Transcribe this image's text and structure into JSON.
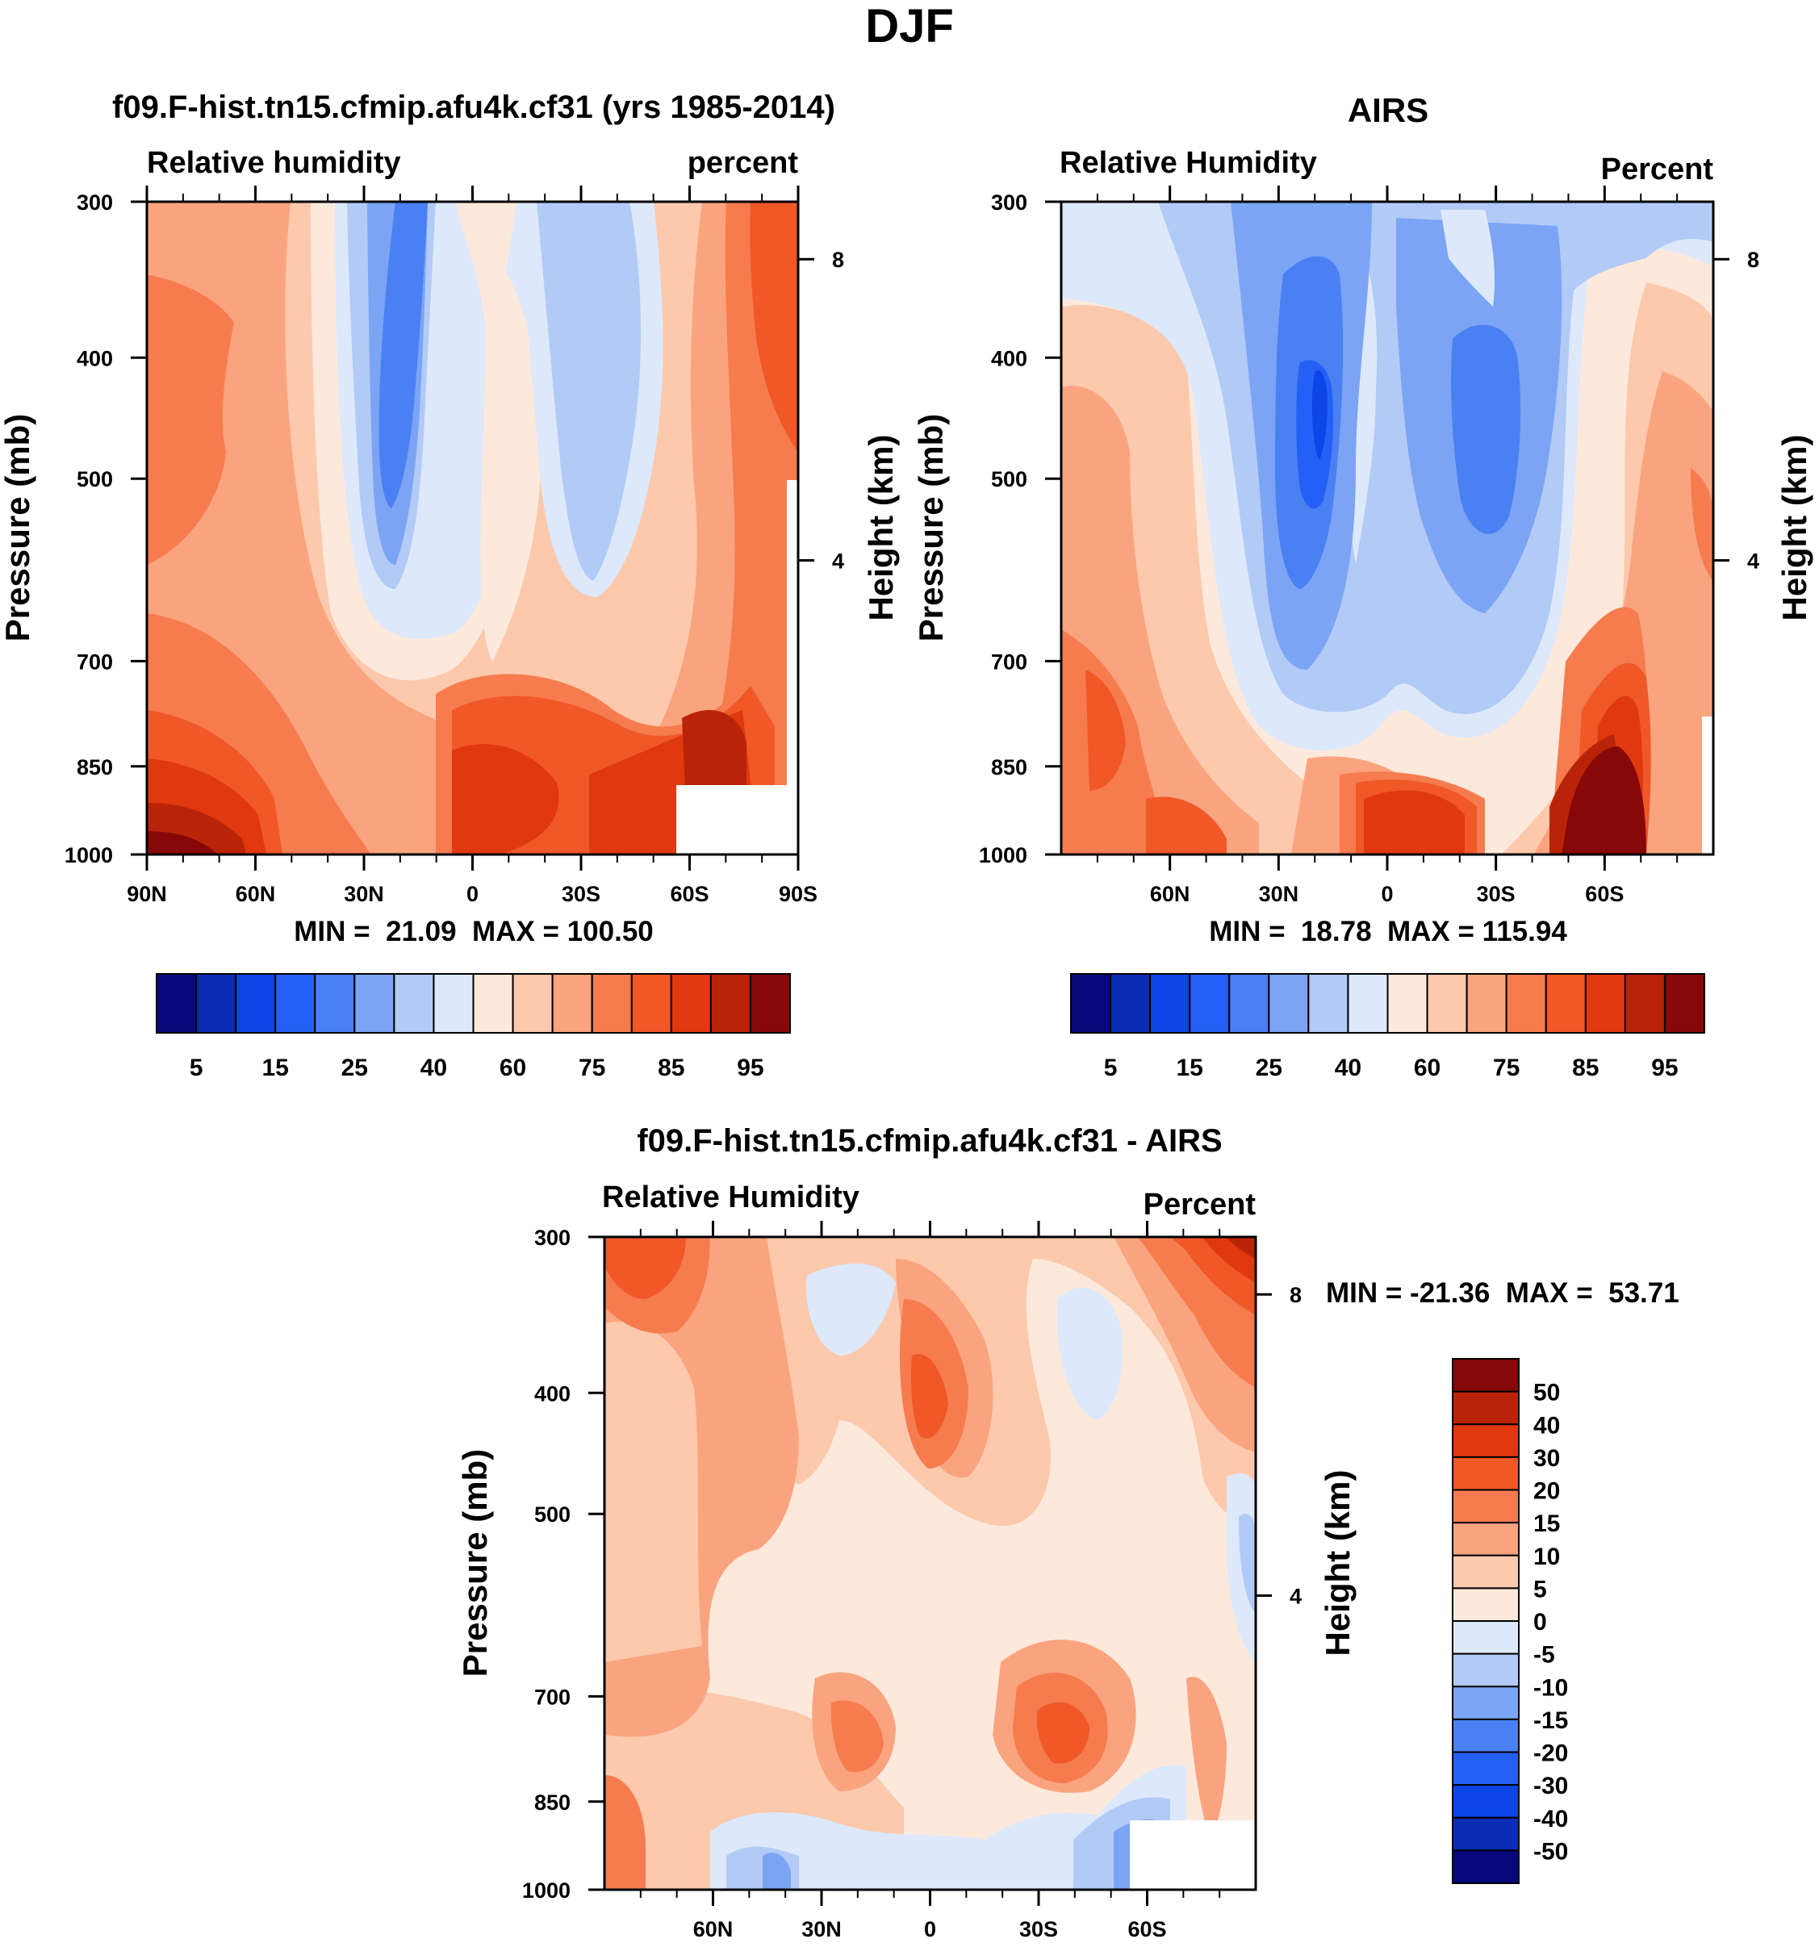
{
  "figure": {
    "title": "DJF"
  },
  "palettes": {
    "rh": [
      "#08087a",
      "#0a2db4",
      "#0d45e6",
      "#2460f5",
      "#4a80f2",
      "#7ca4f4",
      "#b2caf6",
      "#dde9fb",
      "#fde9dc",
      "#fcc9ad",
      "#faa47f",
      "#f67c4f",
      "#f05828",
      "#e0380f",
      "#b92408",
      "#870808"
    ],
    "diff": [
      "#08087a",
      "#0a2db4",
      "#0d45e6",
      "#2460f5",
      "#4a80f2",
      "#7ca4f4",
      "#b2caf6",
      "#dde9fb",
      "#fde9dc",
      "#fcc9ad",
      "#faa47f",
      "#f67c4f",
      "#f05828",
      "#e0380f",
      "#b92408",
      "#870808"
    ]
  },
  "chart_data": [
    {
      "type": "heatmap",
      "panel": "model",
      "title": "f09.F-hist.tn15.cfmip.afu4k.cf31 (yrs 1985-2014)",
      "left_label": "Relative humidity",
      "right_label": "percent",
      "ylabel": "Pressure (mb)",
      "y2label": "Height (km)",
      "xlabel": "",
      "x_ticks": [
        "90N",
        "60N",
        "30N",
        "0",
        "30S",
        "60S",
        "90S"
      ],
      "y_ticks": [
        "300",
        "400",
        "500",
        "700",
        "850",
        "1000"
      ],
      "y2_ticks": [
        "8",
        "4"
      ],
      "ylim": [
        300,
        1000
      ],
      "stats": "MIN =  21.09  MAX = 100.50",
      "colorbar_labels": [
        "5",
        "15",
        "25",
        "40",
        "60",
        "75",
        "85",
        "95"
      ],
      "levels": [
        5,
        10,
        15,
        20,
        25,
        30,
        40,
        50,
        60,
        70,
        75,
        80,
        85,
        90,
        95
      ]
    },
    {
      "type": "heatmap",
      "panel": "obs",
      "title": "AIRS",
      "left_label": "Relative Humidity",
      "right_label": "Percent",
      "ylabel": "Pressure (mb)",
      "y2label": "Height (km)",
      "xlabel": "",
      "x_ticks": [
        "60N",
        "30N",
        "0",
        "30S",
        "60S"
      ],
      "y_ticks": [
        "300",
        "400",
        "500",
        "700",
        "850",
        "1000"
      ],
      "y2_ticks": [
        "8",
        "4"
      ],
      "ylim": [
        300,
        1000
      ],
      "stats": "MIN =  18.78  MAX = 115.94",
      "colorbar_labels": [
        "5",
        "15",
        "25",
        "40",
        "60",
        "75",
        "85",
        "95"
      ],
      "levels": [
        5,
        10,
        15,
        20,
        25,
        30,
        40,
        50,
        60,
        70,
        75,
        80,
        85,
        90,
        95
      ]
    },
    {
      "type": "heatmap",
      "panel": "difference",
      "title": "f09.F-hist.tn15.cfmip.afu4k.cf31 - AIRS",
      "left_label": "Relative Humidity",
      "right_label": "Percent",
      "ylabel": "Pressure (mb)",
      "y2label": "Height (km)",
      "xlabel": "",
      "x_ticks": [
        "60N",
        "30N",
        "0",
        "30S",
        "60S"
      ],
      "y_ticks": [
        "300",
        "400",
        "500",
        "700",
        "850",
        "1000"
      ],
      "y2_ticks": [
        "8",
        "4"
      ],
      "ylim": [
        300,
        1000
      ],
      "stats": "MIN = -21.36  MAX =  53.71",
      "colorbar_labels": [
        "50",
        "40",
        "30",
        "20",
        "15",
        "10",
        "5",
        "0",
        "-5",
        "-10",
        "-15",
        "-20",
        "-30",
        "-40",
        "-50"
      ],
      "levels": [
        -50,
        -40,
        -30,
        -20,
        -15,
        -10,
        -5,
        0,
        5,
        10,
        15,
        20,
        30,
        40,
        50
      ]
    }
  ]
}
